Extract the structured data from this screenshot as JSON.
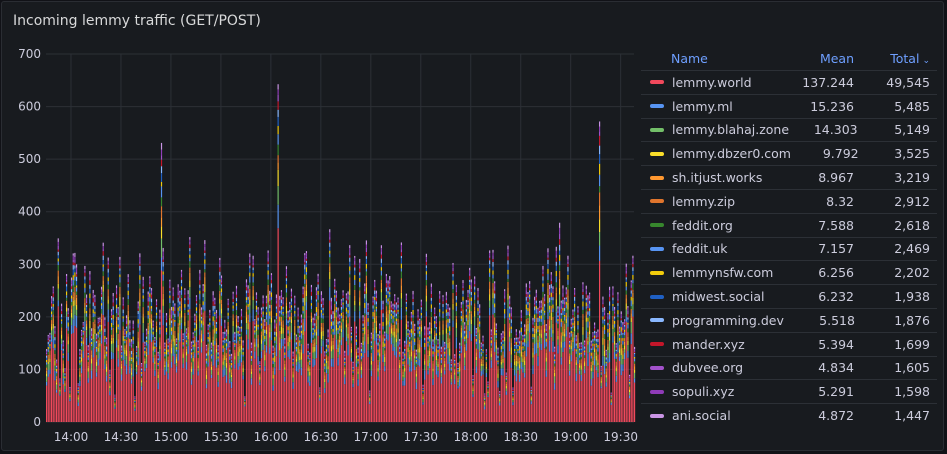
{
  "panel": {
    "title": "Incoming lemmy traffic (GET/POST)"
  },
  "legend": {
    "header": {
      "name": "Name",
      "mean": "Mean",
      "total": "Total"
    },
    "sort_indicator": "chevron-down-icon",
    "items": [
      {
        "name": "lemmy.world",
        "mean": "137.244",
        "total": "49,545",
        "color": "#f2495c"
      },
      {
        "name": "lemmy.ml",
        "mean": "15.236",
        "total": "5,485",
        "color": "#5794f2"
      },
      {
        "name": "lemmy.blahaj.zone",
        "mean": "14.303",
        "total": "5,149",
        "color": "#73bf69"
      },
      {
        "name": "lemmy.dbzer0.com",
        "mean": "9.792",
        "total": "3,525",
        "color": "#fade2a"
      },
      {
        "name": "sh.itjust.works",
        "mean": "8.967",
        "total": "3,219",
        "color": "#ff9830"
      },
      {
        "name": "lemmy.zip",
        "mean": "8.32",
        "total": "2,912",
        "color": "#e0752d"
      },
      {
        "name": "feddit.org",
        "mean": "7.588",
        "total": "2,618",
        "color": "#37872d"
      },
      {
        "name": "feddit.uk",
        "mean": "7.157",
        "total": "2,469",
        "color": "#5794f2"
      },
      {
        "name": "lemmynsfw.com",
        "mean": "6.256",
        "total": "2,202",
        "color": "#f2cc0c"
      },
      {
        "name": "midwest.social",
        "mean": "6.232",
        "total": "1,938",
        "color": "#1f60c4"
      },
      {
        "name": "programming.dev",
        "mean": "5.518",
        "total": "1,876",
        "color": "#8ab8ff"
      },
      {
        "name": "mander.xyz",
        "mean": "5.394",
        "total": "1,699",
        "color": "#c4162a"
      },
      {
        "name": "dubvee.org",
        "mean": "4.834",
        "total": "1,605",
        "color": "#a352cc"
      },
      {
        "name": "sopuli.xyz",
        "mean": "5.291",
        "total": "1,598",
        "color": "#8f3bb8"
      },
      {
        "name": "ani.social",
        "mean": "4.872",
        "total": "1,447",
        "color": "#ca95e5"
      }
    ]
  },
  "chart_data": {
    "type": "bar",
    "stacked": true,
    "title": "Incoming lemmy traffic (GET/POST)",
    "xlabel": "",
    "ylabel": "",
    "ylim": [
      0,
      700
    ],
    "y_ticks": [
      0,
      100,
      200,
      300,
      400,
      500,
      600,
      700
    ],
    "x_range": [
      "13:45",
      "19:38"
    ],
    "x_ticks": [
      "14:00",
      "14:30",
      "15:00",
      "15:30",
      "16:00",
      "16:30",
      "17:00",
      "17:30",
      "18:00",
      "18:30",
      "19:00",
      "19:30"
    ],
    "grid": true,
    "legend_placement": "right",
    "peaks": [
      {
        "x": "14:54",
        "y": 520
      },
      {
        "x": "16:04",
        "y": 565
      },
      {
        "x": "19:17",
        "y": 628
      },
      {
        "x": "18:53",
        "y": 390
      }
    ],
    "typical_total_range": [
      150,
      310
    ]
  }
}
